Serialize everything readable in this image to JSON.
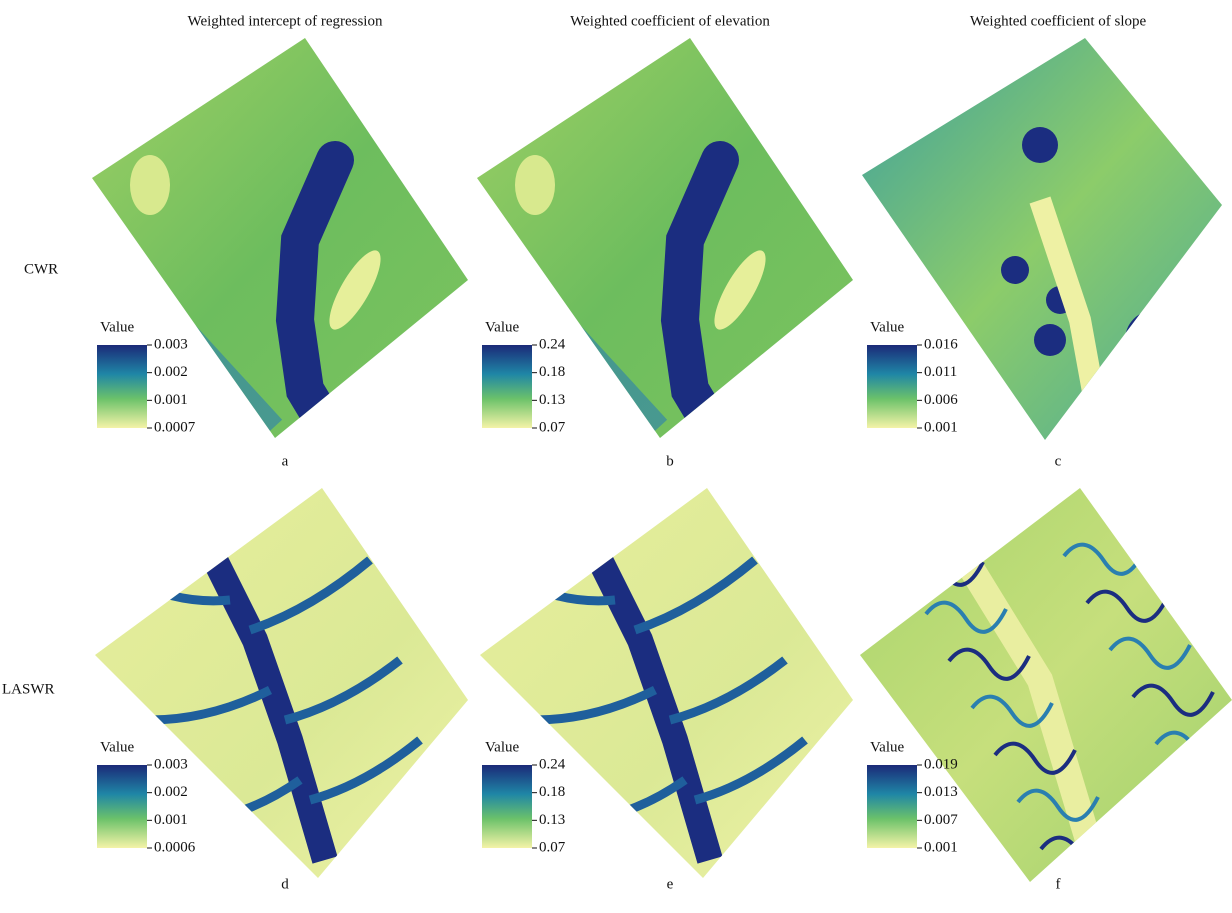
{
  "columns": [
    "Weighted intercept of regression",
    "Weighted coefficient of elevation",
    "Weighted coefficient of slope"
  ],
  "rows": [
    "CWR",
    "LASWR"
  ],
  "panels": [
    {
      "letter": "a",
      "legend_title": "Value",
      "legend_labels": [
        "0.003",
        "0.002",
        "0.001",
        "0.0007"
      ]
    },
    {
      "letter": "b",
      "legend_title": "Value",
      "legend_labels": [
        "0.24",
        "0.18",
        "0.13",
        "0.07"
      ]
    },
    {
      "letter": "c",
      "legend_title": "Value",
      "legend_labels": [
        "0.016",
        "0.011",
        "0.006",
        "0.001"
      ]
    },
    {
      "letter": "d",
      "legend_title": "Value",
      "legend_labels": [
        "0.003",
        "0.002",
        "0.001",
        "0.0006"
      ]
    },
    {
      "letter": "e",
      "legend_title": "Value",
      "legend_labels": [
        "0.24",
        "0.18",
        "0.13",
        "0.07"
      ]
    },
    {
      "letter": "f",
      "legend_title": "Value",
      "legend_labels": [
        "0.019",
        "0.013",
        "0.007",
        "0.001"
      ]
    }
  ]
}
